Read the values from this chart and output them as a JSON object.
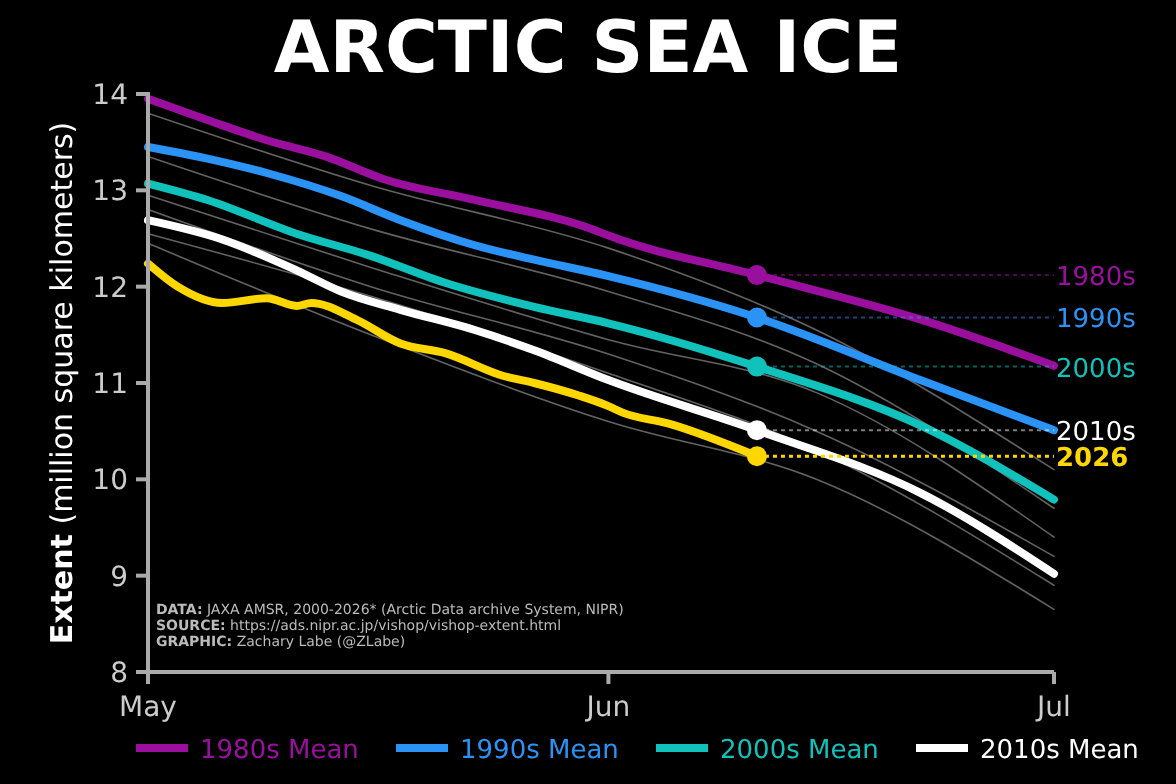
{
  "chart_data": {
    "type": "line",
    "title": "ARCTIC SEA ICE",
    "ylabel": "Extent (million square kilometers)",
    "xlim": [
      "--05-01",
      "--07-01"
    ],
    "xticks": [
      {
        "value": "--05-01",
        "label": "May"
      },
      {
        "value": "--06-01",
        "label": "Jun"
      },
      {
        "value": "--07-01",
        "label": "Jul"
      }
    ],
    "ylim": [
      8,
      14
    ],
    "yticks": [
      8,
      9,
      10,
      11,
      12,
      13,
      14
    ],
    "grid": false,
    "legend": "bottom",
    "line_style": "solid",
    "series": [
      {
        "color": "#8c8c8c",
        "x": [
          "--05-01",
          "--05-16",
          "--06-01",
          "--06-15",
          "--07-01"
        ],
        "values": [
          13.8,
          13.05,
          12.4,
          11.55,
          10.1
        ]
      },
      {
        "color": "#8c8c8c",
        "x": [
          "--05-01",
          "--05-16",
          "--06-01",
          "--06-15",
          "--07-01"
        ],
        "values": [
          13.35,
          12.6,
          11.95,
          11.2,
          9.7
        ]
      },
      {
        "color": "#8c8c8c",
        "x": [
          "--05-01",
          "--05-16",
          "--06-01",
          "--06-15",
          "--07-01"
        ],
        "values": [
          12.95,
          12.2,
          11.45,
          10.9,
          9.4
        ]
      },
      {
        "color": "#8c8c8c",
        "x": [
          "--05-01",
          "--05-16",
          "--06-01",
          "--06-15",
          "--07-01"
        ],
        "values": [
          12.8,
          12.0,
          11.3,
          10.5,
          9.2
        ]
      },
      {
        "color": "#8c8c8c",
        "x": [
          "--05-01",
          "--05-16",
          "--06-01",
          "--06-15",
          "--07-01"
        ],
        "values": [
          12.55,
          11.9,
          11.1,
          10.3,
          8.9
        ]
      },
      {
        "color": "#8c8c8c",
        "x": [
          "--05-01",
          "--05-16",
          "--06-01",
          "--06-15",
          "--07-01"
        ],
        "values": [
          12.45,
          11.5,
          10.6,
          10.0,
          8.65
        ]
      },
      {
        "name": "1980s Mean",
        "color": "#9b0f9f",
        "x": [
          "--05-01",
          "--05-05",
          "--05-09",
          "--05-13",
          "--05-17",
          "--05-23",
          "--05-31",
          "--06-01",
          "--06-11",
          "--06-22",
          "--07-01"
        ],
        "values": [
          13.95,
          13.73,
          13.52,
          13.35,
          13.11,
          12.9,
          12.59,
          12.53,
          12.12,
          11.66,
          11.18
        ]
      },
      {
        "name": "1990s Mean",
        "color": "#2b93f5",
        "x": [
          "--05-01",
          "--05-05",
          "--05-09",
          "--05-14",
          "--05-18",
          "--05-23",
          "--05-27",
          "--06-01",
          "--06-11",
          "--06-22",
          "--07-01"
        ],
        "values": [
          13.45,
          13.33,
          13.18,
          12.94,
          12.69,
          12.43,
          12.28,
          12.11,
          11.68,
          11.03,
          10.51
        ]
      },
      {
        "name": "2000s Mean",
        "color": "#11c1bb",
        "x": [
          "--05-01",
          "--05-05",
          "--05-11",
          "--05-16",
          "--05-21",
          "--05-27",
          "--06-01",
          "--06-11",
          "--06-22",
          "--07-01"
        ],
        "values": [
          13.07,
          12.9,
          12.55,
          12.32,
          12.04,
          11.79,
          11.62,
          11.17,
          10.56,
          9.79
        ]
      },
      {
        "name": "2010s Mean",
        "color": "#ffffff",
        "x": [
          "--05-01",
          "--05-06",
          "--05-11",
          "--05-14",
          "--05-18",
          "--05-23",
          "--05-27",
          "--06-01",
          "--06-11",
          "--06-22",
          "--07-01"
        ],
        "values": [
          12.69,
          12.49,
          12.17,
          11.95,
          11.76,
          11.55,
          11.34,
          11.03,
          10.51,
          9.86,
          9.02
        ]
      },
      {
        "color": "#ffd700",
        "x": [
          "--05-01",
          "--05-03",
          "--05-06",
          "--05-09",
          "--05-11",
          "--05-12",
          "--05-15",
          "--05-18",
          "--05-21",
          "--05-25",
          "--05-27",
          "--05-30",
          "--06-01",
          "--06-02",
          "--06-05",
          "--06-11"
        ],
        "values": [
          12.24,
          12.0,
          11.83,
          11.88,
          11.8,
          11.83,
          11.66,
          11.41,
          11.31,
          11.07,
          11.0,
          10.87,
          10.76,
          10.69,
          10.58,
          10.24
        ]
      }
    ],
    "annotations": [
      {
        "text": "1980s",
        "x": "--06-11",
        "y": 12.12
      },
      {
        "text": "1990s",
        "x": "--06-11",
        "y": 11.68
      },
      {
        "text": "2000s",
        "x": "--06-11",
        "y": 11.17
      },
      {
        "text": "2010s",
        "x": "--06-11",
        "y": 10.51
      },
      {
        "text": "2026",
        "x": "--06-11",
        "y": 10.24
      },
      "DATA: JAXA AMSR, 2000-2026* (Arctic Data archive System, NIPR)",
      "SOURCE: https://ads.nipr.ac.jp/vishop/vishop-extent.html",
      "GRAPHIC: Zachary Labe (@ZLabe)"
    ]
  }
}
